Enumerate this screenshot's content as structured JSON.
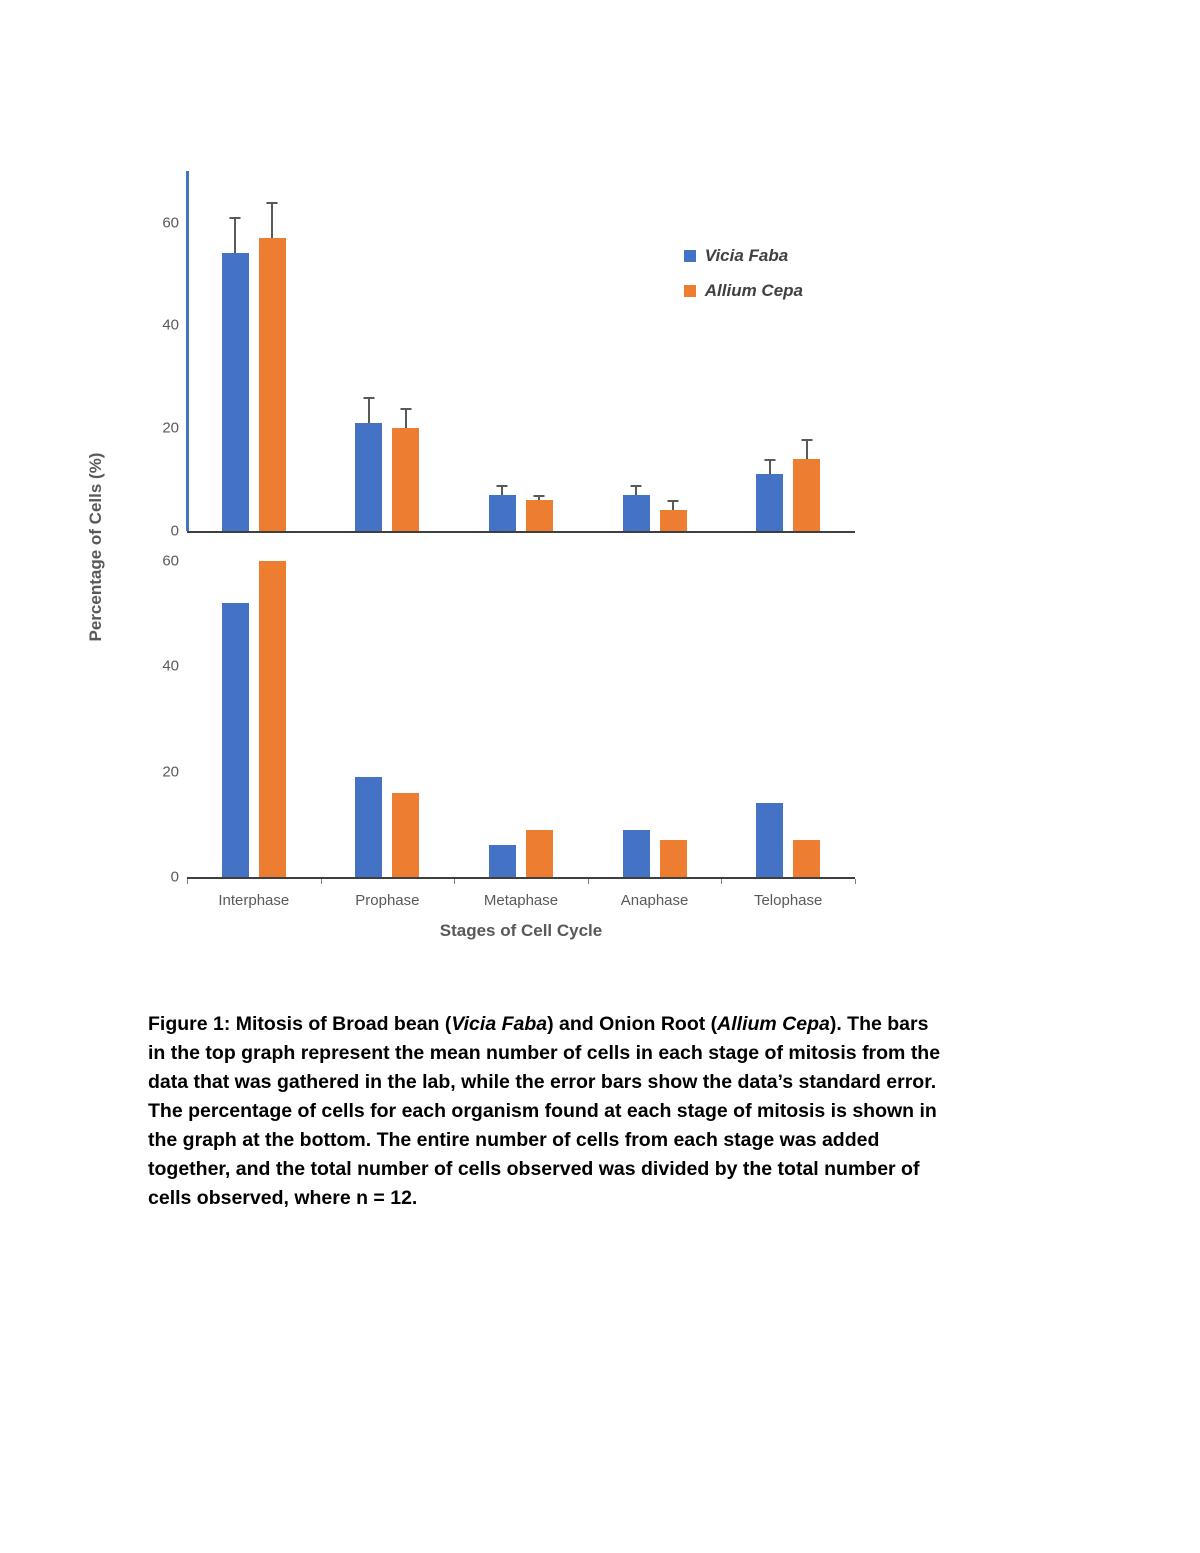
{
  "chart_meta": {
    "ylabel": "Percentage of Cells (%)",
    "colors": {
      "vicia_faba": "#4472C4",
      "allium_cepa": "#ED7D31",
      "error_bar": "#595959",
      "axis": "#3f3f3f"
    }
  },
  "chart_data": [
    {
      "type": "bar",
      "title": "",
      "categories": [
        "Interphase",
        "Prophase",
        "Metaphase",
        "Anaphase",
        "Telophase"
      ],
      "series": [
        {
          "name": "Vicia Faba",
          "color": "#4472C4",
          "values": [
            54,
            21,
            7,
            7,
            11
          ],
          "errors": [
            7,
            5,
            2,
            2,
            3
          ]
        },
        {
          "name": "Allium Cepa",
          "color": "#ED7D31",
          "values": [
            57,
            20,
            6,
            4,
            14
          ],
          "errors": [
            7,
            4,
            1,
            2,
            4
          ]
        }
      ],
      "yticks": [
        0,
        20,
        40,
        60
      ],
      "ylim": [
        0,
        70
      ],
      "error_bars": true,
      "legend_position": "top-right",
      "grid": false,
      "xlabel": "",
      "ylabel": ""
    },
    {
      "type": "bar",
      "title": "",
      "categories": [
        "Interphase",
        "Prophase",
        "Metaphase",
        "Anaphase",
        "Telophase"
      ],
      "series": [
        {
          "name": "Vicia Faba",
          "color": "#4472C4",
          "values": [
            52,
            19,
            6,
            9,
            14
          ]
        },
        {
          "name": "Allium Cepa",
          "color": "#ED7D31",
          "values": [
            60,
            16,
            9,
            7,
            7
          ]
        }
      ],
      "yticks": [
        0,
        20,
        40,
        60
      ],
      "ylim": [
        0,
        63
      ],
      "error_bars": false,
      "grid": false,
      "xlabel": "Stages of Cell Cycle",
      "ylabel": ""
    }
  ],
  "caption": {
    "segments": [
      {
        "text": "Figure 1:",
        "bold": true,
        "italic": false
      },
      {
        "text": " Mitosis of Broad bean (",
        "bold": true,
        "italic": false
      },
      {
        "text": "Vicia Faba",
        "bold": true,
        "italic": true
      },
      {
        "text": ") and Onion Root (",
        "bold": true,
        "italic": false
      },
      {
        "text": "Allium Cepa",
        "bold": true,
        "italic": true
      },
      {
        "text": "). The bars in the top graph represent the mean number of cells in each stage of mitosis from the data that was gathered in the lab, while the error bars show the data’s standard error.  The percentage of cells for each organism found at each stage of mitosis is shown in the graph at the bottom. The entire number of cells from each stage was added together, and the total number of cells observed was divided by the total number of cells observed, where n = 12.",
        "bold": true,
        "italic": false
      }
    ]
  }
}
